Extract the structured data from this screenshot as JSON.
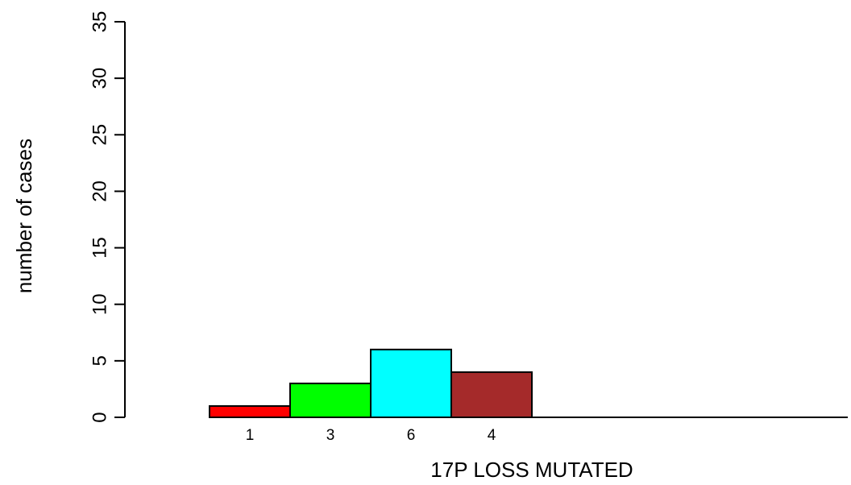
{
  "chart_data": {
    "type": "bar",
    "title": "",
    "xlabel": "17P LOSS MUTATED",
    "ylabel": "number of cases",
    "ylim": [
      0,
      35
    ],
    "yticks": [
      0,
      5,
      10,
      15,
      20,
      25,
      30,
      35
    ],
    "grid": false,
    "legend": "none",
    "bars": [
      {
        "label": "1",
        "value": 1,
        "color": "#ff0000"
      },
      {
        "label": "3",
        "value": 3,
        "color": "#00ff00"
      },
      {
        "label": "6",
        "value": 6,
        "color": "#00ffff"
      },
      {
        "label": "4",
        "value": 4,
        "color": "#a52a2a"
      }
    ],
    "empty_slots": 4
  }
}
